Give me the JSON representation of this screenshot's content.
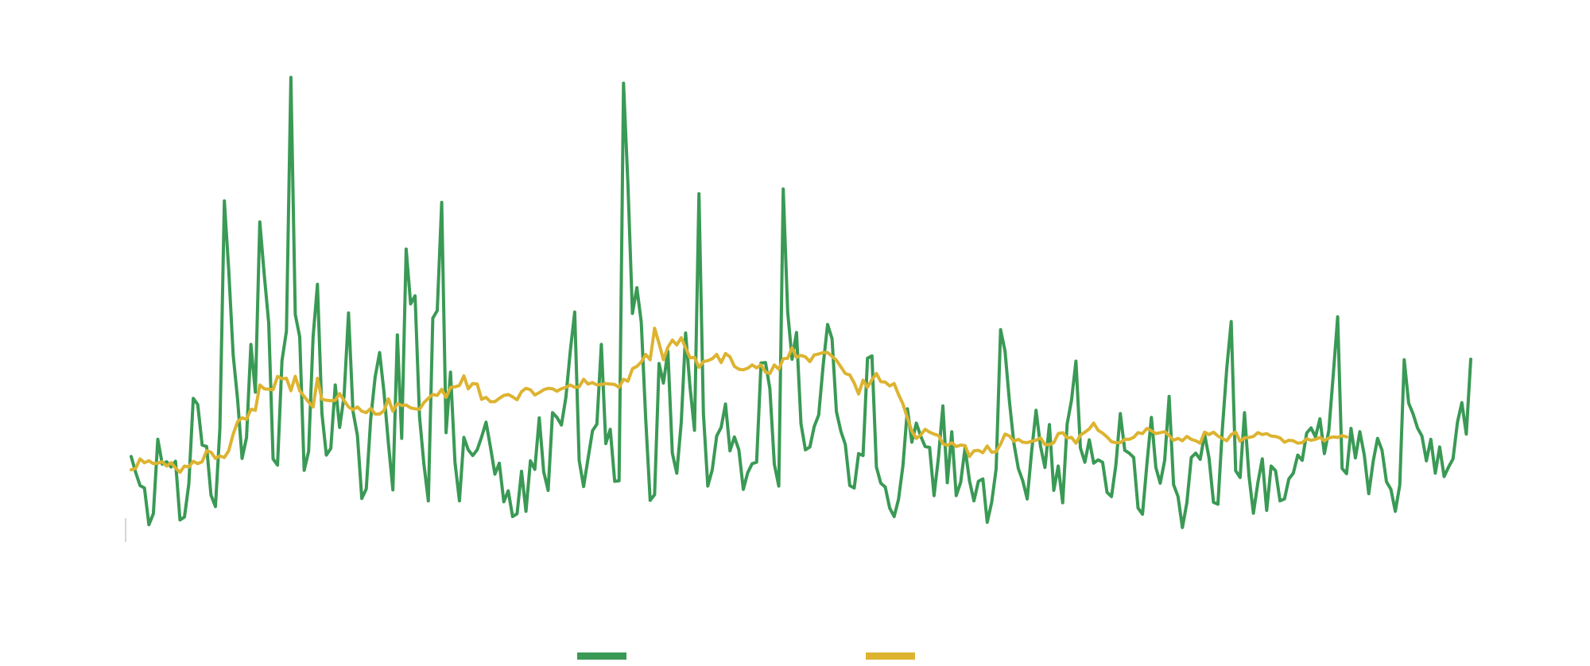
{
  "chart_data": {
    "type": "line",
    "title": "",
    "xlabel": "",
    "ylabel": "",
    "grid": false,
    "legend": "bottom",
    "ylim": [
      0,
      100
    ],
    "series": [
      {
        "color": "#3a9a55",
        "values": [
          17.6,
          14.3,
          11.5,
          11.0,
          3.3,
          5.6,
          21.2,
          16.0,
          16.5,
          15.4,
          16.6,
          4.3,
          4.9,
          11.8,
          29.8,
          28.5,
          20.0,
          19.7,
          9.5,
          7.1,
          23.5,
          71.2,
          56.7,
          38.9,
          29.5,
          17.2,
          21.6,
          41.1,
          31.1,
          66.8,
          55.7,
          45.6,
          17.1,
          15.8,
          37.7,
          43.9,
          97.1,
          47.4,
          42.7,
          14.7,
          18.7,
          42.6,
          53.7,
          26.7,
          17.9,
          19.3,
          32.6,
          23.7,
          30.3,
          47.7,
          27.1,
          22.0,
          8.8,
          10.8,
          25.5,
          34.3,
          39.4,
          31.1,
          20.3,
          10.6,
          43.1,
          21.4,
          61.1,
          49.6,
          51.3,
          26.0,
          16.0,
          8.3,
          46.6,
          48.2,
          70.9,
          22.6,
          35.3,
          16.4,
          8.3,
          21.6,
          19.0,
          17.8,
          19.0,
          21.7,
          24.8,
          19.6,
          13.9,
          16.2,
          8.1,
          10.4,
          5.0,
          5.6,
          14.5,
          6.1,
          16.7,
          14.9,
          25.7,
          14.4,
          10.5,
          26.8,
          25.8,
          24.2,
          30.0,
          39.8,
          47.9,
          16.8,
          11.3,
          17.2,
          23.0,
          24.4,
          41.1,
          20.3,
          23.3,
          12.4,
          12.5,
          95.9,
          74.5,
          47.6,
          53.0,
          45.8,
          25.5,
          8.4,
          9.6,
          37.1,
          33.0,
          39.7,
          18.3,
          14.1,
          24.7,
          43.5,
          32.1,
          23.1,
          72.7,
          26.6,
          11.4,
          14.8,
          21.9,
          23.7,
          28.6,
          18.8,
          21.7,
          19.0,
          10.7,
          14.2,
          16.1,
          16.4,
          37.2,
          37.3,
          31.8,
          16.0,
          11.4,
          73.7,
          47.9,
          38.0,
          43.6,
          24.5,
          19.0,
          19.6,
          23.9,
          26.3,
          36.7,
          45.3,
          42.3,
          27.0,
          22.9,
          20.1,
          11.5,
          11.0,
          18.2,
          17.8,
          38.2,
          38.7,
          15.4,
          12.0,
          11.2,
          6.8,
          5.0,
          8.6,
          15.7,
          27.6,
          20.6,
          24.6,
          21.9,
          19.7,
          19.5,
          9.4,
          17.5,
          28.2,
          12.1,
          22.8,
          9.4,
          12.2,
          19.4,
          12.5,
          8.3,
          12.4,
          12.9,
          3.8,
          8.0,
          15.0,
          44.2,
          39.7,
          29.2,
          20.4,
          15.1,
          12.5,
          8.7,
          18.6,
          27.3,
          19.8,
          15.3,
          24.3,
          10.5,
          15.6,
          7.9,
          24.4,
          29.4,
          37.6,
          19.4,
          16.4,
          21.1,
          16.2,
          16.9,
          16.4,
          10.1,
          9.2,
          15.8,
          26.6,
          18.9,
          18.3,
          17.4,
          6.8,
          5.5,
          16.1,
          25.8,
          15.3,
          12.0,
          16.8,
          30.2,
          11.7,
          9.2,
          2.7,
          7.9,
          17.4,
          18.3,
          17.0,
          22.3,
          17.3,
          8.0,
          7.6,
          23.2,
          36.1,
          45.9,
          14.6,
          13.2,
          26.8,
          13.6,
          5.7,
          12.1,
          17.1,
          6.3,
          15.6,
          14.6,
          8.3,
          8.7,
          12.9,
          14.1,
          17.9,
          16.8,
          22.5,
          23.6,
          21.7,
          25.5,
          18.2,
          23.1,
          34.6,
          46.9,
          15.1,
          14.0,
          23.5,
          17.3,
          22.8,
          17.9,
          9.8,
          16.6,
          21.4,
          18.9,
          12.3,
          10.7,
          6.1,
          11.6,
          37.9,
          28.8,
          26.5,
          23.6,
          21.9,
          16.7,
          21.2,
          14.1,
          19.6,
          13.4,
          15.4,
          17.1,
          24.8,
          28.9,
          22.3,
          38.0
        ]
      },
      {
        "color": "#ddb330",
        "values": [
          14.8,
          15.1,
          17.1,
          16.3,
          16.7,
          16.1,
          16.2,
          16.5,
          15.6,
          16.3,
          15.2,
          14.3,
          15.6,
          15.4,
          16.6,
          16.1,
          16.5,
          18.8,
          18.5,
          17.2,
          17.7,
          17.4,
          18.8,
          22.3,
          24.9,
          25.7,
          25.4,
          27.5,
          27.3,
          32.6,
          31.8,
          31.7,
          31.6,
          34.4,
          33.9,
          34.0,
          31.4,
          34.4,
          31.4,
          30.2,
          29.0,
          28.0,
          34.0,
          29.6,
          29.4,
          29.3,
          29.4,
          30.8,
          29.3,
          28.0,
          27.4,
          28.0,
          27.1,
          26.8,
          27.7,
          26.5,
          26.5,
          27.2,
          29.7,
          27.1,
          28.7,
          28.3,
          28.4,
          27.8,
          27.6,
          27.5,
          28.9,
          29.8,
          30.6,
          30.4,
          31.7,
          30.0,
          32.1,
          32.2,
          32.5,
          34.5,
          31.8,
          32.9,
          32.8,
          29.6,
          30.0,
          29.1,
          29.1,
          29.8,
          30.4,
          30.6,
          30.1,
          29.5,
          31.2,
          31.9,
          31.6,
          30.5,
          31.0,
          31.6,
          31.9,
          31.8,
          31.3,
          31.8,
          32.1,
          32.6,
          32.1,
          32.2,
          33.8,
          32.8,
          33.1,
          32.6,
          32.7,
          32.9,
          32.8,
          32.7,
          32.1,
          33.8,
          33.4,
          36.0,
          36.5,
          37.4,
          39.0,
          37.9,
          44.5,
          41.3,
          37.9,
          40.5,
          42.0,
          41.0,
          42.5,
          40.4,
          38.3,
          38.4,
          36.3,
          37.5,
          37.7,
          38.1,
          39.0,
          37.3,
          39.2,
          38.5,
          36.5,
          35.9,
          35.8,
          36.1,
          36.8,
          36.2,
          36.8,
          35.3,
          35.0,
          36.8,
          35.9,
          38.1,
          38.2,
          40.4,
          38.4,
          38.8,
          38.5,
          37.5,
          38.9,
          39.1,
          39.4,
          39.4,
          38.6,
          37.8,
          36.4,
          35.0,
          34.7,
          33.0,
          30.7,
          33.6,
          32.1,
          33.7,
          35.0,
          33.3,
          33.2,
          32.4,
          32.9,
          30.6,
          28.6,
          25.7,
          22.9,
          21.4,
          22.1,
          23.3,
          22.7,
          22.3,
          22.0,
          20.3,
          19.9,
          20.5,
          19.7,
          20.0,
          19.9,
          17.6,
          18.8,
          18.9,
          18.4,
          19.8,
          18.5,
          18.6,
          20.2,
          22.3,
          21.9,
          20.8,
          21.2,
          20.6,
          20.5,
          20.8,
          21.0,
          21.5,
          20.1,
          20.1,
          20.5,
          22.4,
          22.6,
          21.5,
          21.6,
          20.4,
          22.1,
          22.7,
          23.4,
          24.6,
          23.1,
          22.5,
          21.7,
          20.7,
          20.5,
          20.5,
          21.2,
          21.2,
          21.6,
          22.6,
          22.4,
          23.5,
          23.0,
          22.4,
          22.6,
          22.8,
          22.0,
          21.0,
          21.4,
          20.9,
          21.8,
          21.2,
          20.9,
          20.4,
          22.7,
          22.2,
          22.7,
          21.9,
          21.4,
          20.9,
          22.2,
          22.7,
          20.8,
          21.5,
          21.6,
          21.8,
          22.6,
          22.2,
          22.4,
          21.9,
          21.8,
          21.5,
          20.6,
          21.0,
          20.9,
          20.4,
          20.5,
          21.3,
          21.0,
          21.2,
          21.6,
          20.9,
          21.5,
          21.7,
          21.6,
          22.0,
          21.7
        ]
      }
    ]
  }
}
